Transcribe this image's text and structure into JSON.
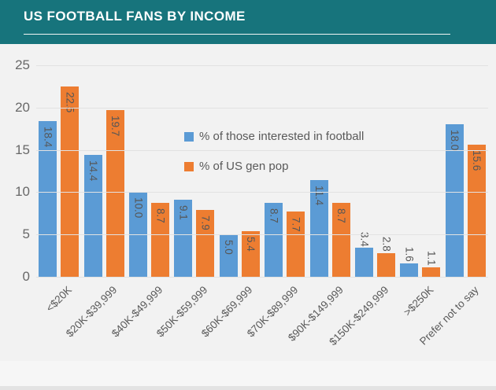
{
  "header": {
    "title": "US FOOTBALL FANS BY INCOME"
  },
  "colors": {
    "header_bg": "#17747c",
    "series1": "#5b9bd5",
    "series2": "#ed7d31",
    "plot_bg": "#f2f2f2",
    "gridline": "#e2e2e2",
    "axis_text": "#686868",
    "label_text": "#565656"
  },
  "chart_data": {
    "type": "bar",
    "title": "US FOOTBALL FANS BY INCOME",
    "categories": [
      "<$20K",
      "$20K-$39,999",
      "$40K-$49,999",
      "$50K-$59,999",
      "$60K-$69,999",
      "$70K-$89,999",
      "$90K-$149,999",
      "$150K-$249,999",
      ">$250K",
      "Prefer not to say"
    ],
    "series": [
      {
        "name": "% of those interested in football",
        "color": "#5b9bd5",
        "values": [
          18.4,
          14.4,
          10.0,
          9.1,
          5.0,
          8.7,
          11.4,
          3.4,
          1.6,
          18.0
        ]
      },
      {
        "name": "% of US gen pop",
        "color": "#ed7d31",
        "values": [
          22.5,
          19.7,
          8.7,
          7.9,
          5.4,
          7.7,
          8.7,
          2.8,
          1.1,
          15.6
        ]
      }
    ],
    "xlabel": "",
    "ylabel": "",
    "ylim": [
      0,
      25
    ],
    "yticks": [
      0,
      5,
      10,
      15,
      20,
      25
    ],
    "grid": true,
    "legend_position": "inside-upper-center",
    "data_labels": "rotated-90-clockwise"
  }
}
